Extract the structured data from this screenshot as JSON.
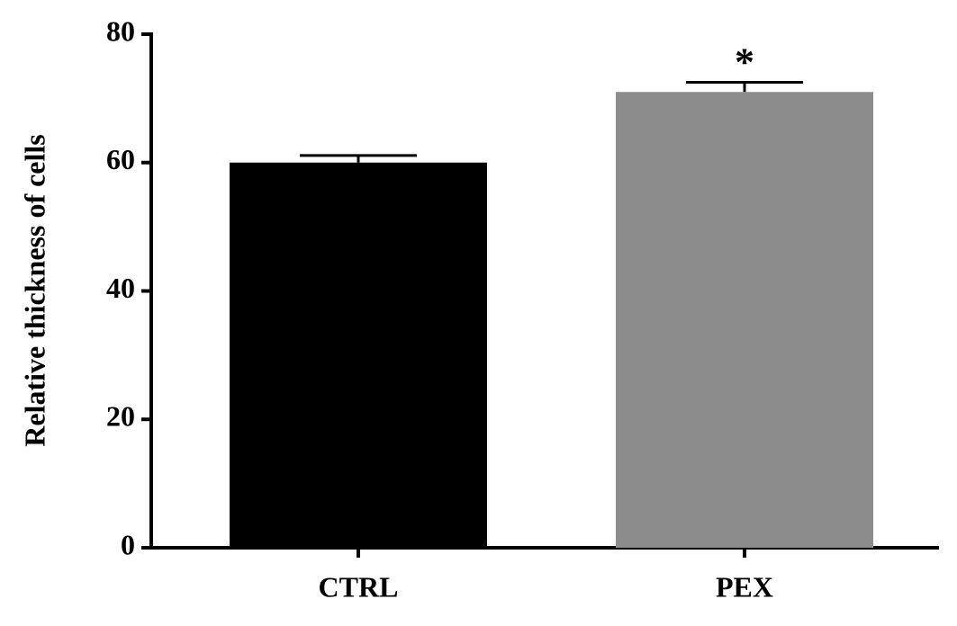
{
  "chart_data": {
    "type": "bar",
    "y_label": "Relative thickness of cells",
    "categories": [
      "CTRL",
      "PEX"
    ],
    "values": [
      60,
      71
    ],
    "errors": [
      1.1,
      1.5
    ],
    "colors": [
      "#000000",
      "#8c8c8c"
    ],
    "annotation": {
      "text": "*",
      "category": "PEX"
    },
    "ylim": [
      0,
      80
    ],
    "yticks": [
      0,
      20,
      40,
      60,
      80
    ],
    "grid": false
  }
}
